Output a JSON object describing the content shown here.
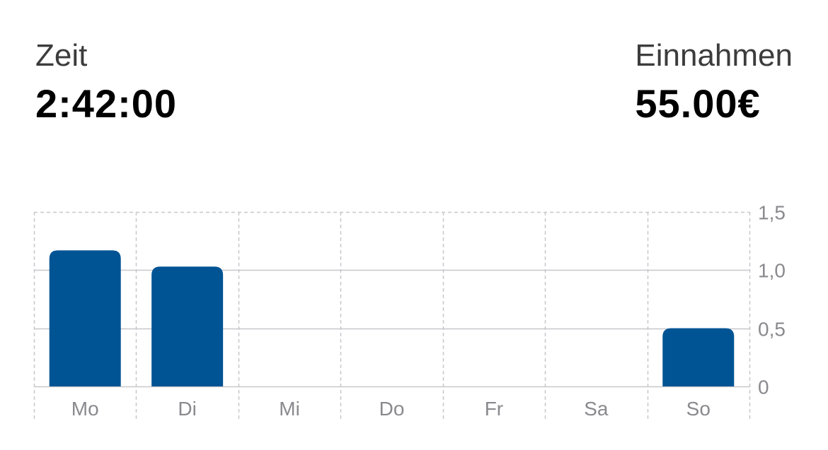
{
  "summary": {
    "time_label": "Zeit",
    "time_value": "2:42:00",
    "income_label": "Einnahmen",
    "income_value": "55.00€"
  },
  "colors": {
    "bar": "#005494",
    "grid": "#c8c8cc",
    "tick_text": "#8a8a8e"
  },
  "chart_data": {
    "type": "bar",
    "categories": [
      "Mo",
      "Di",
      "Mi",
      "Do",
      "Fr",
      "Sa",
      "So"
    ],
    "values": [
      1.17,
      1.03,
      0,
      0,
      0,
      0,
      0.5
    ],
    "y_ticks": [
      0,
      0.5,
      1.0,
      1.5
    ],
    "y_tick_labels": [
      "0",
      "0,5",
      "1,0",
      "1,5"
    ],
    "ylim": [
      0,
      1.5
    ],
    "y_axis_side": "right",
    "grid": true,
    "title": "",
    "xlabel": "",
    "ylabel": ""
  }
}
